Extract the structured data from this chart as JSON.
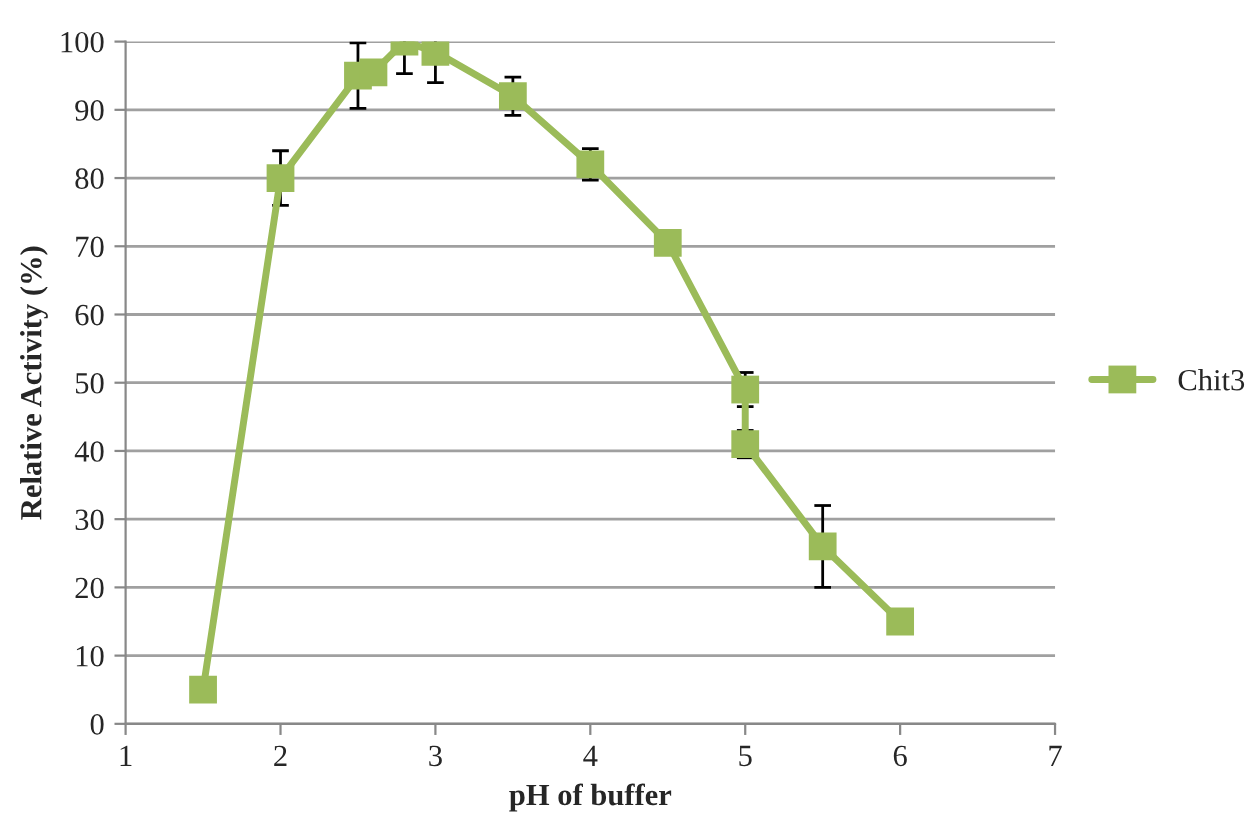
{
  "chart_data": {
    "type": "line",
    "xlabel": "pH of buffer",
    "ylabel": "Relative Activity (%)",
    "x": [
      1.5,
      2,
      2.5,
      2.6,
      2.8,
      3,
      3.5,
      4,
      4.5,
      5,
      5,
      5.5,
      6
    ],
    "series": [
      {
        "name": "Chit3",
        "color": "#9bbb59",
        "values": [
          5,
          80,
          95,
          95.5,
          100,
          98.5,
          92,
          82,
          70.5,
          49,
          41,
          26,
          15
        ],
        "errors": [
          null,
          4,
          4.8,
          null,
          4.7,
          4.5,
          2.8,
          2.3,
          null,
          2.5,
          2,
          6,
          null
        ]
      }
    ],
    "xlim": [
      1,
      7
    ],
    "xticks": [
      1,
      2,
      3,
      4,
      5,
      6,
      7
    ],
    "ylim": [
      0,
      100
    ],
    "yticks": [
      0,
      10,
      20,
      30,
      40,
      50,
      60,
      70,
      80,
      90,
      100
    ],
    "grid": "y",
    "legend": "right",
    "marker": "square",
    "line_style": "solid"
  }
}
